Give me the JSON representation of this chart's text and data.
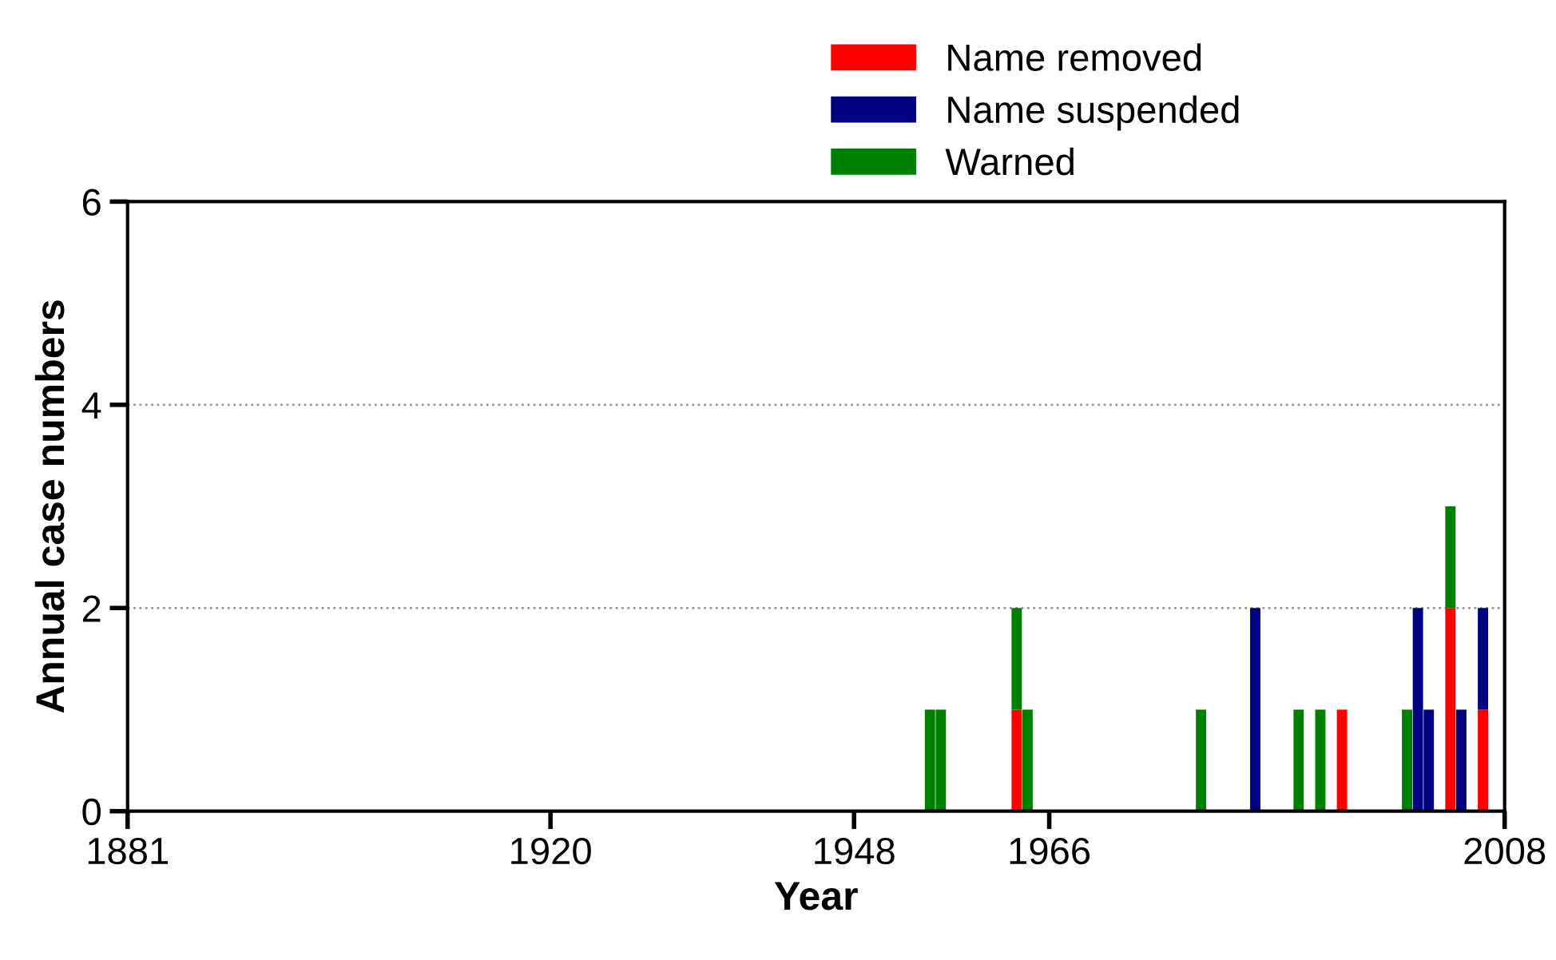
{
  "chart_data": {
    "type": "bar",
    "stacked": true,
    "xlabel": "Year",
    "ylabel": "Annual case numbers",
    "x": [
      1955,
      1956,
      1963,
      1964,
      1980,
      1985,
      1989,
      1991,
      1993,
      1999,
      2000,
      2001,
      2003,
      2004,
      2006
    ],
    "series": [
      {
        "name": "Name removed",
        "color": "#ff0000",
        "values": [
          null,
          null,
          1,
          null,
          null,
          null,
          null,
          null,
          1,
          null,
          null,
          null,
          2,
          null,
          1
        ]
      },
      {
        "name": "Name suspended",
        "color": "#000080",
        "values": [
          null,
          null,
          null,
          null,
          null,
          2,
          null,
          null,
          null,
          null,
          2,
          1,
          null,
          1,
          1
        ]
      },
      {
        "name": "Warned",
        "color": "#008000",
        "values": [
          1,
          1,
          1,
          1,
          1,
          null,
          1,
          1,
          null,
          1,
          null,
          null,
          1,
          null,
          null
        ]
      }
    ],
    "xlim": [
      1881,
      2008
    ],
    "xticks": [
      1881,
      1920,
      1948,
      1966,
      2008
    ],
    "ylim": [
      0,
      6
    ],
    "yticks": [
      0,
      2,
      4,
      6
    ],
    "grid": "y",
    "legend": "top"
  }
}
